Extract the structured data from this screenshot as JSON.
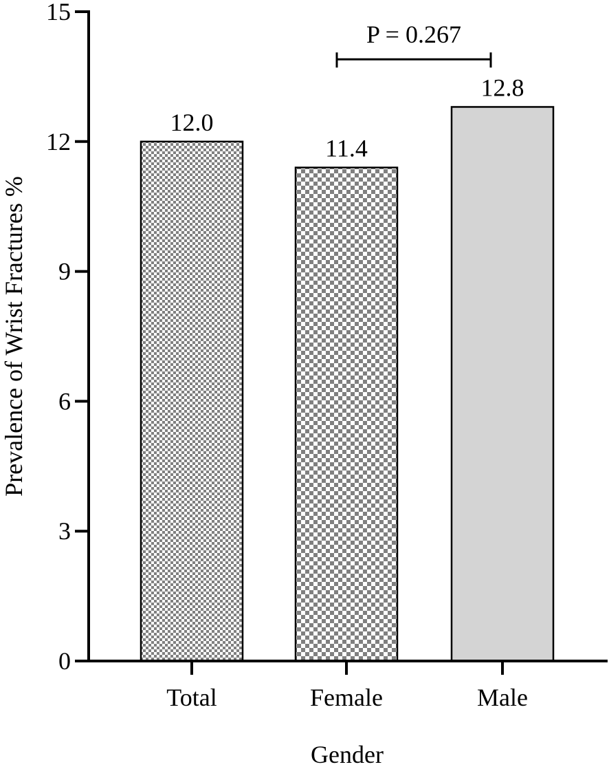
{
  "chart_data": {
    "type": "bar",
    "categories": [
      "Total",
      "Female",
      "Male"
    ],
    "values": [
      12.0,
      11.4,
      12.8
    ],
    "data_labels": [
      "12.0",
      "11.4",
      "12.8"
    ],
    "fills": [
      "checker-fine",
      "checker-coarse",
      "solid"
    ],
    "bar_fill_color": "#d4d4d4",
    "checker_color": "#808080",
    "xlabel": "Gender",
    "ylabel": "Prevalence of Wrist Fractures %",
    "ylim": [
      0,
      15
    ],
    "yticks": [
      0,
      3,
      6,
      9,
      12,
      15
    ],
    "ytick_labels": [
      "0",
      "3",
      "6",
      "9",
      "12",
      "15"
    ],
    "grid": false,
    "annotation": {
      "text": "P = 0.267",
      "from_category": "Female",
      "to_category": "Male",
      "y": 13.9
    }
  }
}
